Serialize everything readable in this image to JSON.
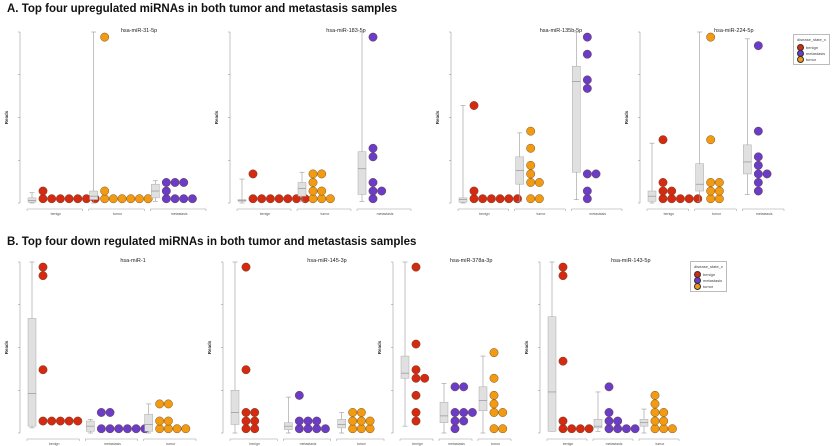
{
  "sections": [
    {
      "title": "A. Top four upregulated miRNAs in both tumor and metastasis samples"
    },
    {
      "title": "B. Top four down regulated miRNAs in both tumor and metastasis samples"
    }
  ],
  "legend": {
    "title": "disease_state_x",
    "items": [
      {
        "label": "benign",
        "color": "#d42a12"
      },
      {
        "label": "metastasis",
        "color": "#6a3cc8"
      },
      {
        "label": "tumor",
        "color": "#f29b12"
      }
    ]
  },
  "chart_data": [
    {
      "type": "box+dot",
      "section": 0,
      "title": "hsa-miR-31-5p",
      "ylabel": "Reads",
      "ylim": [
        0,
        100
      ],
      "grid": false,
      "groups": [
        {
          "category": "benign",
          "color": "#d42a12",
          "box": [
            0,
            0.5,
            1.5,
            3,
            6
          ],
          "values": [
            2.5,
            2.5,
            2.5,
            2.5,
            2.5,
            2.5,
            2.5,
            7
          ]
        },
        {
          "category": "tumor",
          "color": "#f29b12",
          "box": [
            0,
            2,
            4,
            7,
            100
          ],
          "values": [
            2.5,
            2.5,
            2.5,
            2.5,
            2.5,
            2.5,
            7,
            97
          ]
        },
        {
          "category": "metastasis",
          "color": "#6a3cc8",
          "box": [
            1,
            3,
            7,
            11,
            13
          ],
          "values": [
            2.5,
            2.5,
            2.5,
            2.5,
            7,
            12,
            12,
            12
          ]
        }
      ]
    },
    {
      "type": "box+dot",
      "section": 0,
      "title": "hsa-miR-183-5p",
      "ylabel": "Reads",
      "ylim": [
        0,
        100
      ],
      "grid": false,
      "groups": [
        {
          "category": "benign",
          "color": "#d42a12",
          "box": [
            0,
            1,
            1.5,
            2,
            14
          ],
          "values": [
            2.5,
            2.5,
            2.5,
            2.5,
            2.5,
            2.5,
            2.5,
            17
          ]
        },
        {
          "category": "tumor",
          "color": "#f29b12",
          "box": [
            1,
            4,
            8.5,
            12,
            18
          ],
          "values": [
            2.5,
            2.5,
            2.5,
            7,
            7,
            12,
            17,
            17
          ]
        },
        {
          "category": "metastasis",
          "color": "#6a3cc8",
          "box": [
            1,
            5,
            20,
            30,
            100
          ],
          "values": [
            2.5,
            7,
            7,
            12,
            27,
            32,
            97
          ]
        }
      ]
    },
    {
      "type": "box+dot",
      "section": 0,
      "title": "hsa-miR-135b-5p",
      "ylabel": "Reads",
      "ylim": [
        0,
        100
      ],
      "grid": false,
      "groups": [
        {
          "category": "benign",
          "color": "#d42a12",
          "box": [
            0,
            0.5,
            2,
            3,
            57
          ],
          "values": [
            2.5,
            2.5,
            2.5,
            2.5,
            2.5,
            2.5,
            7,
            57
          ]
        },
        {
          "category": "tumor",
          "color": "#f29b12",
          "box": [
            1,
            11,
            19,
            27,
            41
          ],
          "values": [
            2.5,
            2.5,
            12,
            12,
            17,
            22,
            32,
            42
          ]
        },
        {
          "category": "metastasis",
          "color": "#6a3cc8",
          "box": [
            2,
            18,
            71,
            80,
            100
          ],
          "values": [
            2.5,
            7,
            17,
            17,
            67,
            72,
            87,
            97
          ]
        }
      ]
    },
    {
      "type": "box+dot",
      "section": 0,
      "title": "hsa-miR-224-5p",
      "ylabel": "Reads",
      "ylim": [
        0,
        100
      ],
      "grid": false,
      "groups": [
        {
          "category": "benign",
          "color": "#d42a12",
          "box": [
            0,
            1,
            4,
            7,
            35
          ],
          "values": [
            2.5,
            2.5,
            2.5,
            2.5,
            2.5,
            7,
            7,
            12,
            37
          ]
        },
        {
          "category": "tumor",
          "color": "#f29b12",
          "box": [
            1,
            7,
            11,
            23,
            100
          ],
          "values": [
            2.5,
            2.5,
            7,
            7,
            12,
            12,
            37,
            97
          ]
        },
        {
          "category": "metastasis",
          "color": "#6a3cc8",
          "box": [
            5,
            17,
            24,
            34,
            96
          ],
          "values": [
            7,
            12,
            17,
            17,
            22,
            27,
            42,
            92
          ]
        }
      ]
    },
    {
      "type": "box+dot",
      "section": 1,
      "title": "hsa-miR-1",
      "ylabel": "Reads",
      "ylim": [
        0,
        100
      ],
      "grid": false,
      "groups": [
        {
          "category": "benign",
          "color": "#d42a12",
          "box": [
            3,
            4,
            23,
            67,
            100
          ],
          "values": [
            7,
            7,
            7,
            7,
            7,
            37,
            92,
            97
          ]
        },
        {
          "category": "metastasis",
          "color": "#6a3cc8",
          "box": [
            0,
            1,
            4,
            7,
            8
          ],
          "values": [
            2.5,
            2.5,
            2.5,
            2.5,
            2.5,
            2.5,
            12,
            12
          ]
        },
        {
          "category": "tumor",
          "color": "#f29b12",
          "box": [
            0,
            1,
            5,
            11,
            17
          ],
          "values": [
            2.5,
            2.5,
            2.5,
            2.5,
            7,
            7,
            17,
            17
          ]
        }
      ]
    },
    {
      "type": "box+dot",
      "section": 1,
      "title": "hsa-miR-145-3p",
      "ylabel": "Reads",
      "ylim": [
        0,
        100
      ],
      "grid": false,
      "groups": [
        {
          "category": "benign",
          "color": "#d42a12",
          "box": [
            0,
            5,
            12,
            25,
            100
          ],
          "values": [
            2.5,
            2.5,
            7,
            7,
            12,
            12,
            37,
            97
          ]
        },
        {
          "category": "metastasis",
          "color": "#6a3cc8",
          "box": [
            0,
            2,
            4,
            6,
            21
          ],
          "values": [
            2.5,
            2.5,
            2.5,
            2.5,
            7,
            7,
            7,
            22
          ]
        },
        {
          "category": "tumor",
          "color": "#f29b12",
          "box": [
            0,
            3,
            5,
            8,
            12
          ],
          "values": [
            2.5,
            2.5,
            2.5,
            7,
            7,
            7,
            12,
            12
          ]
        }
      ]
    },
    {
      "type": "box+dot",
      "section": 1,
      "title": "hsa-miR-378a-3p",
      "ylabel": "Reads",
      "ylim": [
        0,
        100
      ],
      "grid": false,
      "groups": [
        {
          "category": "benign",
          "color": "#d42a12",
          "box": [
            4,
            32,
            35,
            45,
            100
          ],
          "values": [
            7,
            12,
            22,
            32,
            32,
            37,
            52,
            97
          ]
        },
        {
          "category": "metastasis",
          "color": "#6a3cc8",
          "box": [
            0,
            6,
            10,
            18,
            29
          ],
          "values": [
            2.5,
            7,
            7,
            12,
            12,
            12,
            27,
            27
          ]
        },
        {
          "category": "tumor",
          "color": "#f29b12",
          "box": [
            0,
            13,
            19,
            27,
            45
          ],
          "values": [
            2.5,
            2.5,
            12,
            12,
            17,
            22,
            32,
            47
          ]
        }
      ]
    },
    {
      "type": "box+dot",
      "section": 1,
      "title": "hsa-miR-143-5p",
      "ylabel": "Reads",
      "ylim": [
        0,
        100
      ],
      "grid": false,
      "groups": [
        {
          "category": "benign",
          "color": "#d42a12",
          "box": [
            1,
            1,
            24,
            68,
            100
          ],
          "values": [
            2.5,
            2.5,
            2.5,
            2.5,
            7,
            42,
            92,
            97
          ]
        },
        {
          "category": "metastasis",
          "color": "#6a3cc8",
          "box": [
            1,
            3,
            4,
            8,
            24
          ],
          "values": [
            2.5,
            2.5,
            2.5,
            2.5,
            7,
            7,
            12,
            27
          ]
        },
        {
          "category": "tumor",
          "color": "#f29b12",
          "box": [
            0,
            4,
            6,
            8,
            14
          ],
          "values": [
            2.5,
            2.5,
            2.5,
            7,
            7,
            12,
            12,
            17,
            22
          ]
        }
      ]
    }
  ]
}
